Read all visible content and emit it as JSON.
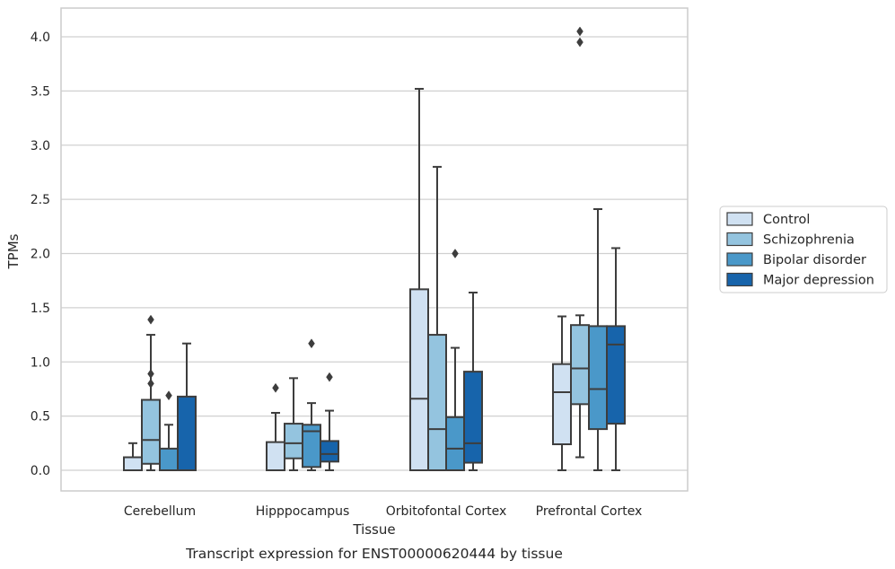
{
  "chart_data": {
    "type": "box",
    "caption": "Transcript expression for ENST00000620444 by tissue",
    "xlabel": "Tissue",
    "ylabel": "TPMs",
    "ylim": [
      -0.2,
      4.25
    ],
    "yticks": [
      0.0,
      0.5,
      1.0,
      1.5,
      2.0,
      2.5,
      3.0,
      3.5,
      4.0
    ],
    "ytick_labels": [
      "0.0",
      "0.5",
      "1.0",
      "1.5",
      "2.0",
      "2.5",
      "3.0",
      "3.5",
      "4.0"
    ],
    "grid": true,
    "legend_position": "right-center",
    "categories": [
      "Cerebellum",
      "Hipppocampus",
      "Orbitofontal Cortex",
      "Prefrontal Cortex"
    ],
    "series": [
      {
        "name": "Control",
        "color": "#d0e1f2",
        "boxes": [
          {
            "whislo": 0.0,
            "q1": 0.0,
            "med": 0.0,
            "q3": 0.12,
            "whishi": 0.25,
            "fliers": []
          },
          {
            "whislo": 0.0,
            "q1": 0.0,
            "med": 0.0,
            "q3": 0.26,
            "whishi": 0.53,
            "fliers": [
              0.76
            ]
          },
          {
            "whislo": 0.0,
            "q1": 0.0,
            "med": 0.66,
            "q3": 1.67,
            "whishi": 3.52,
            "fliers": []
          },
          {
            "whislo": 0.0,
            "q1": 0.24,
            "med": 0.72,
            "q3": 0.98,
            "whishi": 1.42,
            "fliers": []
          }
        ]
      },
      {
        "name": "Schizophrenia",
        "color": "#94c4df",
        "boxes": [
          {
            "whislo": 0.0,
            "q1": 0.06,
            "med": 0.28,
            "q3": 0.65,
            "whishi": 1.25,
            "fliers": [
              0.8,
              0.89,
              1.39
            ]
          },
          {
            "whislo": 0.0,
            "q1": 0.11,
            "med": 0.25,
            "q3": 0.43,
            "whishi": 0.85,
            "fliers": []
          },
          {
            "whislo": 0.0,
            "q1": 0.0,
            "med": 0.38,
            "q3": 1.25,
            "whishi": 2.8,
            "fliers": []
          },
          {
            "whislo": 0.12,
            "q1": 0.61,
            "med": 0.94,
            "q3": 1.34,
            "whishi": 1.43,
            "fliers": [
              3.95,
              4.05
            ]
          }
        ]
      },
      {
        "name": "Bipolar disorder",
        "color": "#4a98c9",
        "boxes": [
          {
            "whislo": 0.0,
            "q1": 0.0,
            "med": 0.0,
            "q3": 0.2,
            "whishi": 0.42,
            "fliers": [
              0.69
            ]
          },
          {
            "whislo": 0.0,
            "q1": 0.03,
            "med": 0.36,
            "q3": 0.42,
            "whishi": 0.62,
            "fliers": [
              1.17
            ]
          },
          {
            "whislo": 0.0,
            "q1": 0.0,
            "med": 0.2,
            "q3": 0.49,
            "whishi": 1.13,
            "fliers": [
              2.0
            ]
          },
          {
            "whislo": 0.0,
            "q1": 0.38,
            "med": 0.75,
            "q3": 1.33,
            "whishi": 2.41,
            "fliers": []
          }
        ]
      },
      {
        "name": "Major depression",
        "color": "#1764ab",
        "boxes": [
          {
            "whislo": 0.0,
            "q1": 0.0,
            "med": 0.0,
            "q3": 0.68,
            "whishi": 1.17,
            "fliers": []
          },
          {
            "whislo": 0.0,
            "q1": 0.08,
            "med": 0.15,
            "q3": 0.27,
            "whishi": 0.55,
            "fliers": [
              0.86
            ]
          },
          {
            "whislo": 0.0,
            "q1": 0.07,
            "med": 0.25,
            "q3": 0.91,
            "whishi": 1.64,
            "fliers": []
          },
          {
            "whislo": 0.0,
            "q1": 0.43,
            "med": 1.16,
            "q3": 1.33,
            "whishi": 2.05,
            "fliers": []
          }
        ]
      }
    ]
  }
}
